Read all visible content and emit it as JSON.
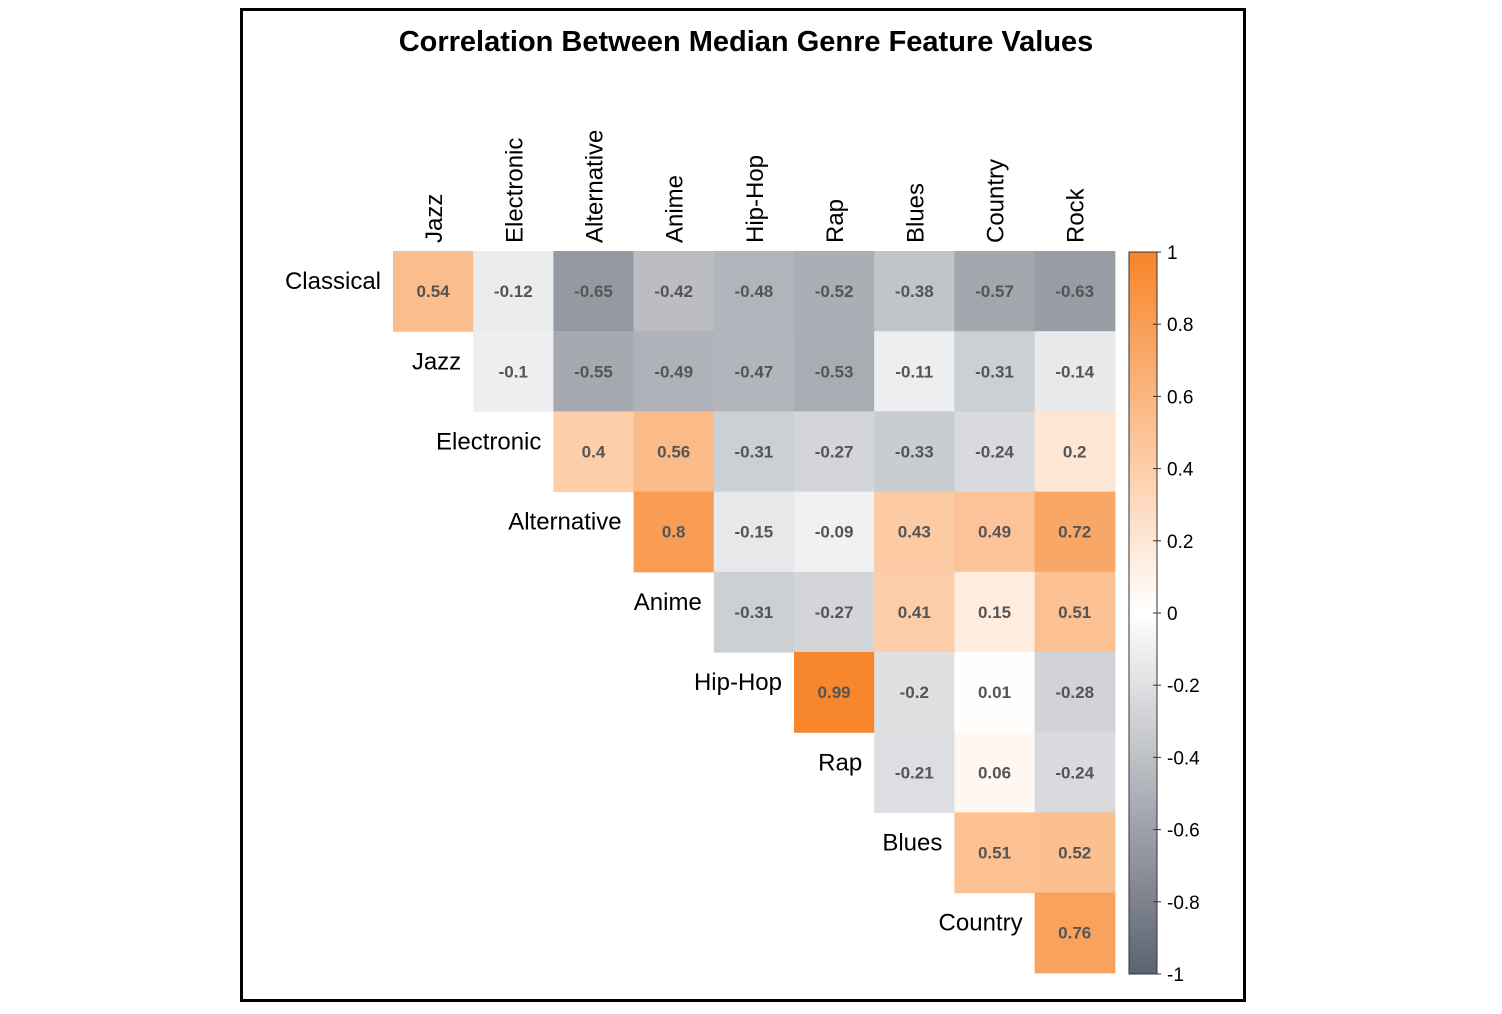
{
  "chart_data": {
    "type": "heatmap",
    "title": "Correlation Between Median Genre Feature Values",
    "subtype": "upper-triangle correlation matrix",
    "row_labels": [
      "Classical",
      "Jazz",
      "Electronic",
      "Alternative",
      "Anime",
      "Hip-Hop",
      "Rap",
      "Blues",
      "Country"
    ],
    "col_labels": [
      "Jazz",
      "Electronic",
      "Alternative",
      "Anime",
      "Hip-Hop",
      "Rap",
      "Blues",
      "Country",
      "Rock"
    ],
    "values": [
      [
        0.54,
        -0.12,
        -0.65,
        -0.42,
        -0.48,
        -0.52,
        -0.38,
        -0.57,
        -0.63
      ],
      [
        null,
        -0.1,
        -0.55,
        -0.49,
        -0.47,
        -0.53,
        -0.11,
        -0.31,
        -0.14
      ],
      [
        null,
        null,
        0.4,
        0.56,
        -0.31,
        -0.27,
        -0.33,
        -0.24,
        0.2
      ],
      [
        null,
        null,
        null,
        0.8,
        -0.15,
        -0.09,
        0.43,
        0.49,
        0.72
      ],
      [
        null,
        null,
        null,
        null,
        -0.31,
        -0.27,
        0.41,
        0.15,
        0.51
      ],
      [
        null,
        null,
        null,
        null,
        null,
        0.99,
        -0.2,
        0.01,
        -0.28
      ],
      [
        null,
        null,
        null,
        null,
        null,
        null,
        -0.21,
        0.06,
        -0.24
      ],
      [
        null,
        null,
        null,
        null,
        null,
        null,
        null,
        0.51,
        0.52
      ],
      [
        null,
        null,
        null,
        null,
        null,
        null,
        null,
        null,
        0.76
      ]
    ],
    "colorbar": {
      "range": [
        -1,
        1
      ],
      "ticks": [
        1,
        0.8,
        0.6,
        0.4,
        0.2,
        0,
        -0.2,
        -0.4,
        -0.6,
        -0.8,
        -1
      ],
      "colors": {
        "positive": "#f7852a",
        "zero": "#ffffff",
        "negative": "#5c6370"
      }
    },
    "legend_position": "right"
  }
}
